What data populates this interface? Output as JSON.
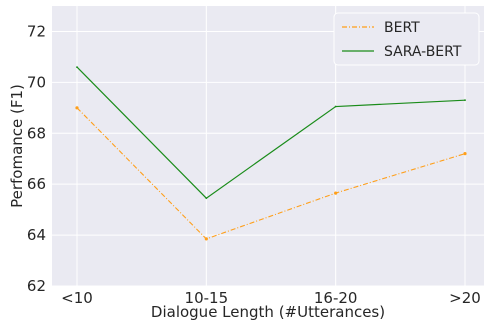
{
  "chart_data": {
    "type": "line",
    "title": "",
    "xlabel": "Dialogue Length (#Utterances)",
    "ylabel": "Perfomance (F1)",
    "categories": [
      "<10",
      "10-15",
      "16-20",
      ">20"
    ],
    "ylim": [
      62,
      73
    ],
    "yticks": [
      62,
      64,
      66,
      68,
      70,
      72
    ],
    "grid": true,
    "legend_position": "top-right",
    "series": [
      {
        "name": "BERT",
        "values": [
          69.0,
          63.85,
          65.65,
          67.2
        ],
        "color": "#ff9f1a",
        "style": "dash-dot"
      },
      {
        "name": "SARA-BERT",
        "values": [
          70.6,
          65.45,
          69.05,
          69.3
        ],
        "color": "#1a8c1a",
        "style": "solid"
      }
    ]
  },
  "colors": {
    "plot_background": "#eaeaf2",
    "grid": "#ffffff"
  }
}
